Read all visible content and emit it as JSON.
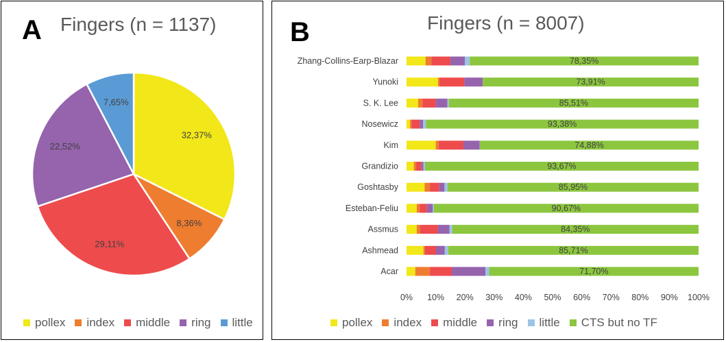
{
  "panel_a": {
    "letter": "A",
    "title": "Fingers (n = 1137)"
  },
  "panel_b": {
    "letter": "B",
    "title": "Fingers (n = 8007)"
  },
  "colors": {
    "pollex": "#f2e718",
    "index": "#ee7d2f",
    "middle": "#ee4b4d",
    "ring": "#9663ad",
    "little": "#5b9bd5",
    "little_light": "#9dc3e6",
    "cts": "#8cc63f"
  },
  "chart_data": [
    {
      "type": "pie",
      "title": "Fingers (n = 1137)",
      "labels": [
        "pollex",
        "index",
        "middle",
        "ring",
        "little"
      ],
      "values": [
        32.37,
        8.36,
        29.11,
        22.52,
        7.65
      ],
      "data_labels": [
        "32,37%",
        "8,36%",
        "29,11%",
        "22,52%",
        "7,65%"
      ],
      "legend": [
        "pollex",
        "index",
        "middle",
        "ring",
        "little"
      ],
      "legend_position": "bottom"
    },
    {
      "type": "bar",
      "orientation": "horizontal",
      "stacked": "100%",
      "title": "Fingers (n = 8007)",
      "categories": [
        "Zhang-Collins-Earp-Blazar",
        "Yunoki",
        "S. K. Lee",
        "Nosewicz",
        "Kim",
        "Grandizio",
        "Goshtasby",
        "Esteban-Feliu",
        "Assmus",
        "Ashmead",
        "Acar"
      ],
      "series": [
        {
          "name": "pollex",
          "values": [
            6.5,
            10.8,
            4.0,
            1.2,
            10.0,
            2.5,
            6.2,
            3.5,
            3.5,
            5.8,
            3.0
          ]
        },
        {
          "name": "index",
          "values": [
            2.0,
            0.5,
            1.5,
            0.5,
            1.0,
            0.8,
            1.8,
            1.0,
            1.2,
            0.5,
            5.0
          ]
        },
        {
          "name": "middle",
          "values": [
            6.5,
            8.5,
            4.5,
            2.8,
            8.5,
            1.8,
            3.2,
            2.5,
            6.0,
            3.8,
            7.5
          ]
        },
        {
          "name": "ring",
          "values": [
            5.0,
            6.3,
            4.0,
            1.2,
            5.5,
            0.7,
            1.8,
            2.0,
            4.0,
            3.0,
            11.5
          ]
        },
        {
          "name": "little",
          "values": [
            1.65,
            0.0,
            0.49,
            0.92,
            0.12,
            0.53,
            1.05,
            0.33,
            0.95,
            1.19,
            1.3
          ]
        },
        {
          "name": "CTS but no TF",
          "values": [
            78.35,
            73.91,
            85.51,
            93.38,
            74.88,
            93.67,
            85.95,
            90.67,
            84.35,
            85.71,
            71.7
          ]
        }
      ],
      "data_labels": [
        "78,35%",
        "73,91%",
        "85,51%",
        "93,38%",
        "74,88%",
        "93,67%",
        "85,95%",
        "90,67%",
        "84,35%",
        "85,71%",
        "71,70%"
      ],
      "x_ticks": [
        "0%",
        "10%",
        "20%",
        "30%",
        "40%",
        "50%",
        "60%",
        "70%",
        "80%",
        "90%",
        "100%"
      ],
      "xlim": [
        0,
        100
      ],
      "legend": [
        "pollex",
        "index",
        "middle",
        "ring",
        "little",
        "CTS but no TF"
      ],
      "legend_position": "bottom"
    }
  ]
}
